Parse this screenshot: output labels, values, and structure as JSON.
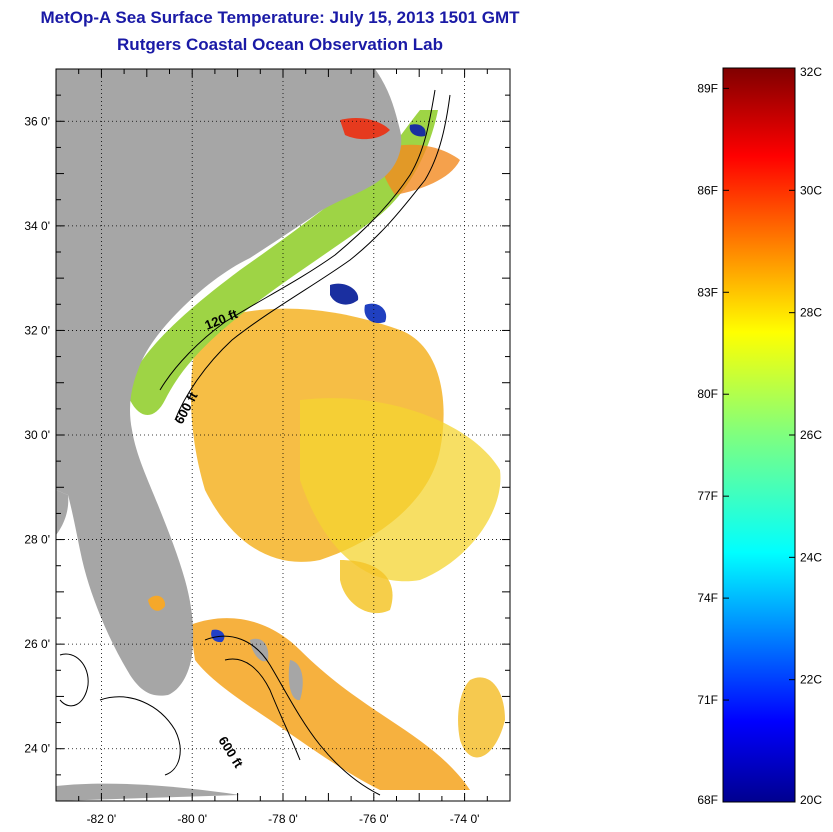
{
  "title": "MetOp-A Sea Surface Temperature:  July 15, 2013 1501 GMT",
  "subtitle": "Rutgers Coastal Ocean Observation Lab",
  "map": {
    "lon_range": [
      -83,
      -73
    ],
    "lat_range": [
      23,
      37
    ],
    "lon_ticks": [
      {
        "value": -82,
        "label": "-82 0'"
      },
      {
        "value": -80,
        "label": "-80 0'"
      },
      {
        "value": -78,
        "label": "-78 0'"
      },
      {
        "value": -76,
        "label": "-76 0'"
      },
      {
        "value": -74,
        "label": "-74 0'"
      }
    ],
    "lat_ticks": [
      {
        "value": 24,
        "label": "24 0'"
      },
      {
        "value": 26,
        "label": "26 0'"
      },
      {
        "value": 28,
        "label": "28 0'"
      },
      {
        "value": 30,
        "label": "30 0'"
      },
      {
        "value": 32,
        "label": "32 0'"
      },
      {
        "value": 34,
        "label": "34 0'"
      },
      {
        "value": 36,
        "label": "36 0'"
      }
    ],
    "contour_labels": [
      "120 ft",
      "600 ft",
      "600 ft"
    ],
    "land_color": "#a6a6a6",
    "grid": true
  },
  "colorbar": {
    "min_c": 20,
    "max_c": 32,
    "celsius_labels": [
      "20C",
      "22C",
      "24C",
      "26C",
      "28C",
      "30C",
      "32C"
    ],
    "fahrenheit_labels": [
      "68F",
      "71F",
      "74F",
      "77F",
      "80F",
      "83F",
      "86F",
      "89F"
    ],
    "fahrenheit_values": [
      68,
      71,
      74,
      77,
      80,
      83,
      86,
      89
    ]
  }
}
